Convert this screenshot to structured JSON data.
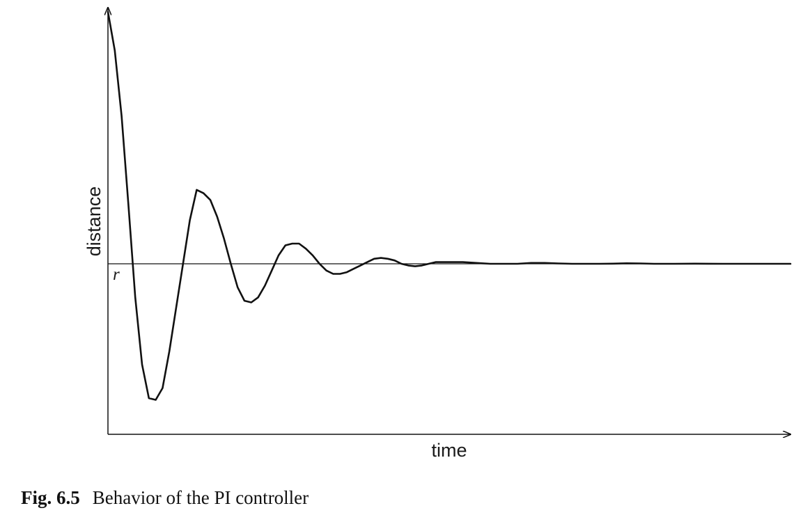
{
  "chart_data": {
    "type": "line",
    "title": "",
    "xlabel": "time",
    "ylabel": "distance",
    "reference": {
      "label": "r",
      "value": 0
    },
    "xlim": [
      0,
      100
    ],
    "ylim": [
      -100,
      150
    ],
    "grid": false,
    "series": [
      {
        "x": [
          0,
          1,
          2,
          3,
          4,
          5,
          6,
          7,
          8,
          9,
          10,
          11,
          12,
          13,
          14,
          15,
          16,
          17,
          18,
          19,
          20,
          21,
          22,
          23,
          24,
          25,
          26,
          27,
          28,
          29,
          30,
          31,
          32,
          33,
          34,
          35,
          36,
          37,
          38,
          39,
          40,
          41,
          42,
          43,
          44,
          45,
          46,
          47,
          48,
          49,
          50,
          52,
          54,
          56,
          58,
          60,
          62,
          64,
          66,
          68,
          70,
          72,
          74,
          76,
          78,
          80,
          83,
          86,
          90,
          94,
          100
        ],
        "y": [
          150,
          127,
          88,
          35,
          -20,
          -60,
          -80,
          -81,
          -74,
          -52,
          -26,
          0,
          26,
          44,
          42,
          38,
          28,
          15,
          0,
          -14,
          -22,
          -23,
          -20,
          -13,
          -4,
          5,
          11,
          12,
          12,
          9,
          5,
          0,
          -4,
          -6,
          -6,
          -5,
          -3,
          -1,
          1,
          3,
          3.5,
          3,
          2,
          0,
          -1,
          -1.5,
          -1,
          0,
          1,
          1,
          1,
          1,
          0.5,
          0,
          0,
          0,
          0.5,
          0.5,
          0.2,
          0,
          0,
          0,
          0.1,
          0.3,
          0.2,
          0,
          0,
          0.1,
          0,
          0,
          0
        ]
      }
    ]
  },
  "caption": {
    "number": "Fig. 6.5",
    "text": "Behavior of the PI controller"
  }
}
